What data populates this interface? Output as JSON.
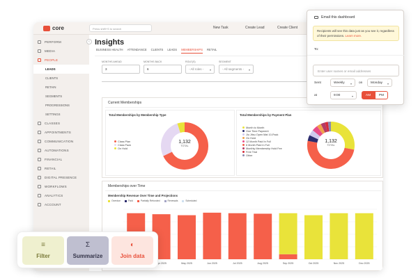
{
  "app": {
    "brand": "core",
    "search_placeholder": "Press shift+S to search",
    "top_actions": [
      "New Task",
      "Create Lead",
      "Create Client"
    ]
  },
  "sidebar": {
    "items": [
      {
        "label": "PERFORM"
      },
      {
        "label": "MEDIA"
      },
      {
        "label": "PEOPLE"
      },
      {
        "label": "CLASSES"
      },
      {
        "label": "APPOINTMENTS"
      },
      {
        "label": "COMMUNICATION"
      },
      {
        "label": "AUTOMATIONS"
      },
      {
        "label": "FINANCIAL"
      },
      {
        "label": "RETAIL"
      },
      {
        "label": "DIGITAL PRESENCE"
      },
      {
        "label": "WORKFLOWS"
      },
      {
        "label": "ANALYTICS"
      },
      {
        "label": "ACCOUNT"
      }
    ],
    "people_sub": [
      "LEADS",
      "CLIENTS",
      "RETAIN",
      "SEGMENTS",
      "PROGRESSIONS",
      "SETTINGS"
    ]
  },
  "page": {
    "title": "Insights",
    "tabs": [
      "BUSINESS HEALTH",
      "ATTENDANCE",
      "CLIENTS",
      "LEADS",
      "MEMBERSHIPS",
      "RETAIL"
    ],
    "active_tab": "MEMBERSHIPS",
    "filters": {
      "months_ahead_label": "MONTHS AHEAD",
      "months_ahead_value": "3",
      "months_back_label": "MONTHS BACK",
      "months_back_value": "6",
      "role_label": "ROLE(S)",
      "role_value": "- All roles -",
      "segment_label": "SEGMENT",
      "segment_value": "- All segments -"
    },
    "current_memberships_title": "Current Memberships",
    "by_type_title": "Total Memberships by Membership Type",
    "by_type_total": "1,132",
    "by_type_total_caption": "TOTAL",
    "by_type_legend": [
      {
        "name": "Class Plan",
        "color": "#f5604a"
      },
      {
        "name": "Class Pack",
        "color": "#e5d8f2"
      },
      {
        "name": "On Hold",
        "color": "#e9e33a"
      }
    ],
    "by_payment_title": "Total Memberships by Payment Plan",
    "by_payment_total": "1,132",
    "by_payment_total_caption": "TOTAL",
    "by_payment_legend": [
      {
        "name": "Month to Month",
        "color": "#e9e33a"
      },
      {
        "name": "One Time Payment",
        "color": "#2c2c6e"
      },
      {
        "name": "Jiu Jitsu Open Mat 10-Pack",
        "color": "#cfc9ee"
      },
      {
        "name": "On Hold",
        "color": "#f0a24a"
      },
      {
        "name": "12 Month Paid In Full",
        "color": "#e84c88"
      },
      {
        "name": "6 Month Paid In Full",
        "color": "#f5604a"
      },
      {
        "name": "Monthly Membership Hold Fee",
        "color": "#b43b66"
      },
      {
        "name": "Free Trial",
        "color": "#d62b3a"
      },
      {
        "name": "Other",
        "color": "#8a8ab0"
      }
    ],
    "over_time_title": "Memberships over Time",
    "revenue_title": "Membership Revenue Over Time and Projections",
    "revenue_legend": [
      {
        "name": "Overdue",
        "color": "#e9e33a"
      },
      {
        "name": "Paid",
        "color": "#2c2c6e"
      },
      {
        "name": "Partially Refunded",
        "color": "#f5604a"
      },
      {
        "name": "Renewals",
        "color": "#a5a5c5"
      },
      {
        "name": "Scheduled",
        "color": "#cfe0f0"
      }
    ]
  },
  "chart_data": [
    {
      "type": "pie",
      "title": "Total Memberships by Membership Type",
      "categories": [
        "Class Plan",
        "Class Pack",
        "On Hold"
      ],
      "values": [
        0.68,
        0.27,
        0.05
      ]
    },
    {
      "type": "pie",
      "title": "Total Memberships by Payment Plan",
      "categories": [
        "Month to Month",
        "6 Month Paid In Full",
        "One Time Payment",
        "Jiu Jitsu Open Mat 10-Pack",
        "12 Month Paid In Full",
        "On Hold",
        "Monthly Membership Hold Fee",
        "Free Trial",
        "Other"
      ],
      "values": [
        0.28,
        0.5,
        0.04,
        0.04,
        0.04,
        0.03,
        0.03,
        0.02,
        0.02
      ]
    },
    {
      "type": "bar",
      "title": "Membership Revenue Over Time and Projections",
      "categories": [
        "Mar 2025",
        "Apr 2025",
        "May 2025",
        "Jun 2025",
        "Jul 2025",
        "Aug 2025",
        "Sep 2025",
        "Oct 2025",
        "Nov 2025",
        "Dec 2025"
      ],
      "series": [
        {
          "name": "Partially Refunded",
          "values": [
            0.92,
            0.9,
            0.88,
            0.93,
            0.92,
            0.91,
            0.1,
            0,
            0,
            0
          ]
        },
        {
          "name": "Overdue",
          "values": [
            0,
            0,
            0,
            0,
            0,
            0,
            0.82,
            0.88,
            0.92,
            0.92
          ]
        }
      ]
    }
  ],
  "popup": {
    "title": "Email this dashboard",
    "note": "Recipients will see this data just as you see it, regardless of their permissions.",
    "note_link": "Learn more.",
    "to_label": "To:",
    "to_placeholder": "Enter user names or email addresses",
    "sent_label": "Sent",
    "frequency": "Weekly",
    "on_label": "on",
    "day": "Monday",
    "at_label": "at",
    "time": "9:00",
    "am": "AM",
    "pm": "PM"
  },
  "palette": {
    "filter": "Filter",
    "summarize": "Summarize",
    "join": "Join data"
  }
}
